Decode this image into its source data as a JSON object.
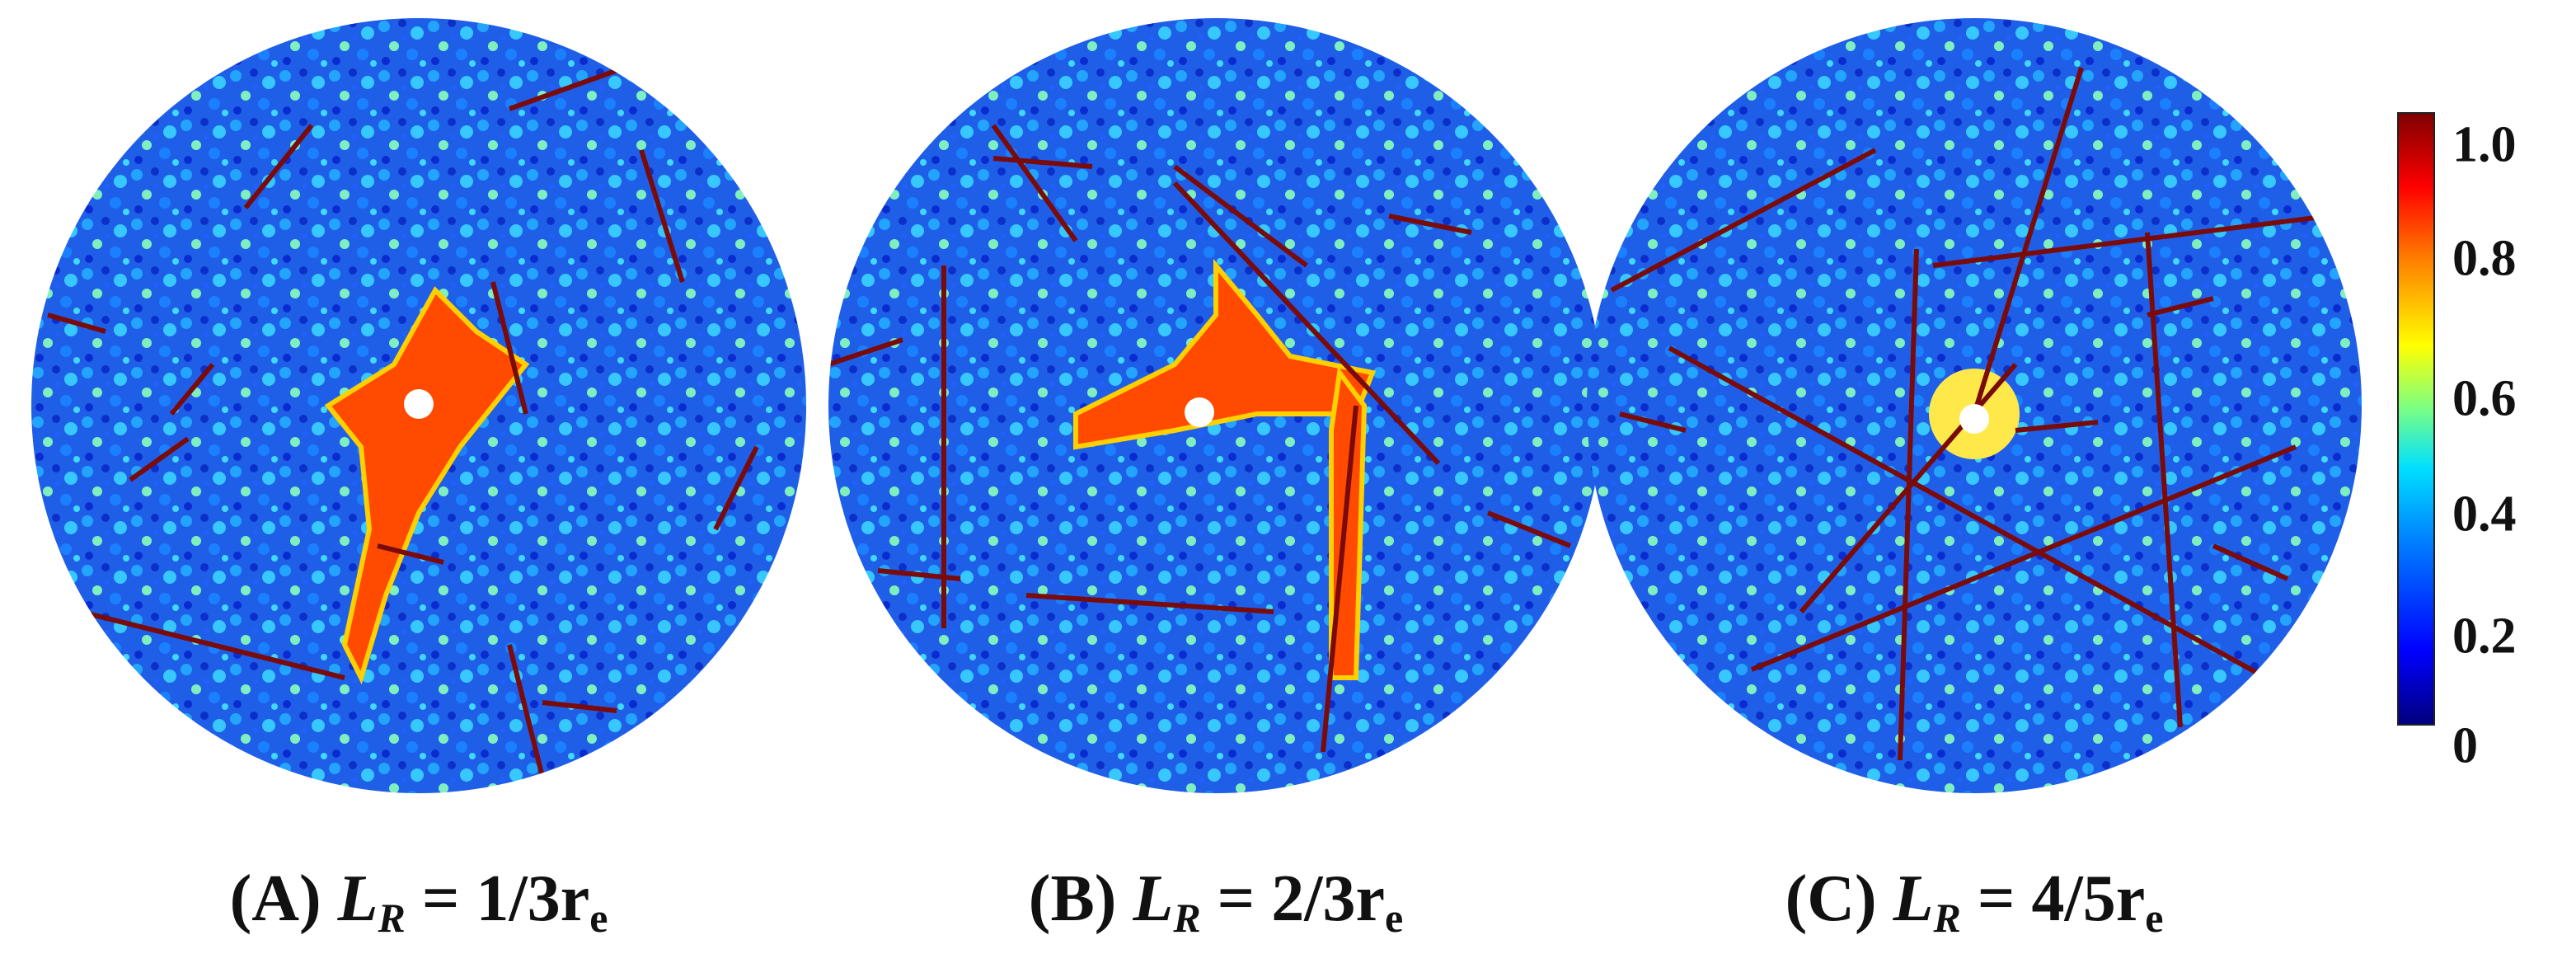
{
  "panels": [
    {
      "letter": "(A)",
      "var_main": "L",
      "var_sub": "R",
      "equals": " = ",
      "value": "1/3r",
      "value_sub": "e"
    },
    {
      "letter": "(B)",
      "var_main": "L",
      "var_sub": "R",
      "equals": " = ",
      "value": "2/3r",
      "value_sub": "e"
    },
    {
      "letter": "(C)",
      "var_main": "L",
      "var_sub": "R",
      "equals": " = ",
      "value": "4/5r",
      "value_sub": "e"
    }
  ],
  "colorbar": {
    "ticks": [
      "1.0",
      "0.8",
      "0.6",
      "0.4",
      "0.2",
      "0"
    ],
    "colors": [
      "#00007f",
      "#0000ff",
      "#0080ff",
      "#00e0ff",
      "#7fff80",
      "#ffff00",
      "#ff8000",
      "#ff0000",
      "#800000"
    ]
  }
}
